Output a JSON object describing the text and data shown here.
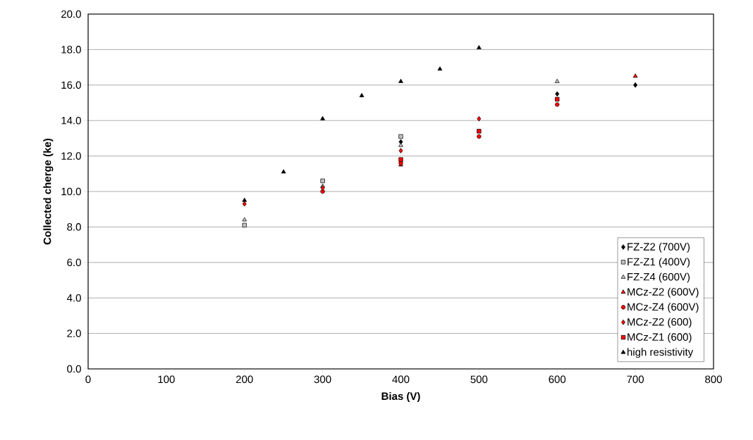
{
  "chart_data": {
    "type": "scatter",
    "xlabel": "Bias (V)",
    "ylabel": "Collected cherge (ke)",
    "xlim": [
      0,
      800
    ],
    "xticks": [
      0,
      100,
      200,
      300,
      400,
      500,
      600,
      700,
      800
    ],
    "ylim": [
      0,
      20
    ],
    "yticks": [
      {
        "value": 0,
        "label": "0.0"
      },
      {
        "value": 2,
        "label": "2.0"
      },
      {
        "value": 4,
        "label": "4.0"
      },
      {
        "value": 6,
        "label": "6.0"
      },
      {
        "value": 8,
        "label": "8.0"
      },
      {
        "value": 10,
        "label": "10.0"
      },
      {
        "value": 12,
        "label": "12.0"
      },
      {
        "value": 14,
        "label": "14.0"
      },
      {
        "value": 16,
        "label": "16.0"
      },
      {
        "value": 18,
        "label": "18.0"
      },
      {
        "value": 20,
        "label": "20.0"
      }
    ],
    "grid": "y",
    "legend": "bottom right",
    "series": [
      {
        "name": "FZ-Z2 (700V)",
        "color": "#000000",
        "marker": "diamond",
        "x": [
          400,
          600,
          700
        ],
        "values": [
          12.8,
          15.5,
          16.0
        ]
      },
      {
        "name": "FZ-Z1 (400V)",
        "color": "#c0c0c0",
        "marker": "square",
        "x": [
          200,
          300,
          400
        ],
        "values": [
          8.1,
          10.6,
          13.1
        ]
      },
      {
        "name": "FZ-Z4 (600V)",
        "color": "#c0c0c0",
        "marker": "triangle",
        "x": [
          200,
          300,
          400,
          600
        ],
        "values": [
          8.4,
          10.3,
          12.6,
          16.2
        ]
      },
      {
        "name": "MCz-Z2 (600V)",
        "color": "#ff0000",
        "marker": "triangle",
        "x": [
          400,
          700
        ],
        "values": [
          11.5,
          16.5
        ]
      },
      {
        "name": "MCz-Z4 (600V)",
        "color": "#ff0000",
        "marker": "circle",
        "x": [
          300,
          400,
          500,
          600
        ],
        "values": [
          10.0,
          11.6,
          13.1,
          14.9
        ]
      },
      {
        "name": "MCz-Z2 (600)",
        "color": "#ff0000",
        "marker": "diamond",
        "x": [
          200,
          300,
          400,
          500
        ],
        "values": [
          9.3,
          10.2,
          12.3,
          14.1
        ]
      },
      {
        "name": "MCz-Z1 (600)",
        "color": "#ff0000",
        "marker": "square",
        "x": [
          400,
          500,
          600
        ],
        "values": [
          11.8,
          13.4,
          15.2
        ]
      },
      {
        "name": "high resistivity",
        "color": "#000000",
        "marker": "triangle",
        "x": [
          200,
          250,
          300,
          350,
          400,
          450,
          500
        ],
        "values": [
          9.5,
          11.1,
          14.1,
          15.4,
          16.2,
          16.9,
          18.1
        ]
      }
    ]
  }
}
